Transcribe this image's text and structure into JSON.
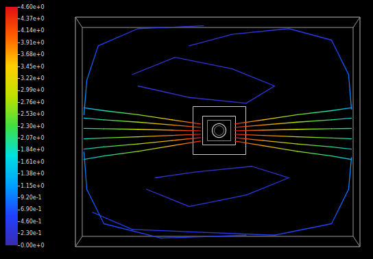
{
  "chart_data": {
    "type": "streamline",
    "xlim": [
      0,
      100
    ],
    "ylim": [
      0,
      80
    ],
    "tick_labels": false,
    "colorbar": {
      "range": [
        0,
        4.6
      ],
      "ticks": [
        {
          "value": 0,
          "label": "0.00e+0"
        },
        {
          "value": 0.23,
          "label": "2.30e-1"
        },
        {
          "value": 0.46,
          "label": "4.60e-1"
        },
        {
          "value": 0.69,
          "label": "6.90e-1"
        },
        {
          "value": 0.92,
          "label": "9.20e-1"
        },
        {
          "value": 1.15,
          "label": "1.15e+0"
        },
        {
          "value": 1.38,
          "label": "1.38e+0"
        },
        {
          "value": 1.61,
          "label": "1.61e+0"
        },
        {
          "value": 1.84,
          "label": "1.84e+0"
        },
        {
          "value": 2.07,
          "label": "2.07e+0"
        },
        {
          "value": 2.3,
          "label": "2.30e+0"
        },
        {
          "value": 2.53,
          "label": "2.53e+0"
        },
        {
          "value": 2.76,
          "label": "2.76e+0"
        },
        {
          "value": 2.99,
          "label": "2.99e+0"
        },
        {
          "value": 3.22,
          "label": "3.22e+0"
        },
        {
          "value": 3.45,
          "label": "3.45e+0"
        },
        {
          "value": 3.68,
          "label": "3.68e+0"
        },
        {
          "value": 3.91,
          "label": "3.91e+0"
        },
        {
          "value": 4.14,
          "label": "4.14e+0"
        },
        {
          "value": 4.37,
          "label": "4.37e+0"
        },
        {
          "value": 4.6,
          "label": "4.60e+0"
        }
      ]
    },
    "streamlines": [
      {
        "points": [
          [
            56,
            36.8,
            4.5
          ],
          [
            66,
            35.2,
            3.6
          ],
          [
            78,
            33.2,
            2.7
          ],
          [
            90,
            31.6,
            2.0
          ],
          [
            97,
            30.4,
            1.4
          ]
        ]
      },
      {
        "points": [
          [
            56,
            38,
            4.5
          ],
          [
            66,
            37,
            3.7
          ],
          [
            78,
            35.8,
            2.8
          ],
          [
            90,
            34.8,
            2.1
          ],
          [
            97,
            34,
            1.5
          ]
        ]
      },
      {
        "points": [
          [
            56,
            39.2,
            4.6
          ],
          [
            66,
            38.8,
            3.9
          ],
          [
            78,
            38.3,
            3.0
          ],
          [
            90,
            37.9,
            2.3
          ],
          [
            97,
            37.6,
            1.7
          ]
        ]
      },
      {
        "points": [
          [
            56,
            40.4,
            4.6
          ],
          [
            66,
            40.6,
            3.9
          ],
          [
            78,
            40.9,
            3.0
          ],
          [
            90,
            41.1,
            2.3
          ],
          [
            97,
            41.2,
            1.7
          ]
        ]
      },
      {
        "points": [
          [
            56,
            41.6,
            4.5
          ],
          [
            66,
            42.4,
            3.7
          ],
          [
            78,
            43.4,
            2.8
          ],
          [
            90,
            44.2,
            2.1
          ],
          [
            97,
            44.8,
            1.5
          ]
        ]
      },
      {
        "points": [
          [
            56,
            42.8,
            4.4
          ],
          [
            66,
            44.2,
            3.5
          ],
          [
            78,
            46,
            2.6
          ],
          [
            90,
            47.4,
            1.9
          ],
          [
            97,
            48.4,
            1.3
          ]
        ]
      },
      {
        "points": [
          [
            44,
            36.8,
            4.4
          ],
          [
            34,
            35.2,
            3.5
          ],
          [
            22,
            33.2,
            2.6
          ],
          [
            10,
            31.6,
            1.9
          ],
          [
            3,
            30.4,
            1.3
          ]
        ]
      },
      {
        "points": [
          [
            44,
            38,
            4.5
          ],
          [
            34,
            37,
            3.7
          ],
          [
            22,
            35.8,
            2.8
          ],
          [
            10,
            34.8,
            2.1
          ],
          [
            3,
            34,
            1.5
          ]
        ]
      },
      {
        "points": [
          [
            44,
            39.2,
            4.6
          ],
          [
            34,
            38.8,
            3.9
          ],
          [
            22,
            38.3,
            3.0
          ],
          [
            10,
            37.9,
            2.3
          ],
          [
            3,
            37.6,
            1.7
          ]
        ]
      },
      {
        "points": [
          [
            44,
            40.4,
            4.6
          ],
          [
            34,
            40.6,
            3.9
          ],
          [
            22,
            40.9,
            3.0
          ],
          [
            10,
            41.1,
            2.3
          ],
          [
            3,
            41.2,
            1.7
          ]
        ]
      },
      {
        "points": [
          [
            44,
            41.6,
            4.5
          ],
          [
            34,
            42.4,
            3.7
          ],
          [
            22,
            43.4,
            2.8
          ],
          [
            10,
            44.2,
            2.1
          ],
          [
            3,
            44.8,
            1.5
          ]
        ]
      },
      {
        "points": [
          [
            44,
            42.8,
            4.4
          ],
          [
            34,
            44.2,
            3.5
          ],
          [
            22,
            46,
            2.6
          ],
          [
            10,
            47.4,
            1.9
          ],
          [
            3,
            48.4,
            1.3
          ]
        ]
      },
      {
        "points": [
          [
            97,
            48,
            1.2
          ],
          [
            96,
            60,
            0.8
          ],
          [
            90,
            72,
            0.5
          ],
          [
            75,
            76,
            0.4
          ],
          [
            55,
            74,
            0.3
          ],
          [
            40,
            70,
            0.3
          ]
        ]
      },
      {
        "points": [
          [
            97,
            31,
            1.2
          ],
          [
            96,
            20,
            0.9
          ],
          [
            90,
            8,
            0.6
          ],
          [
            70,
            4,
            0.5
          ],
          [
            45,
            5,
            0.4
          ],
          [
            20,
            6,
            0.5
          ],
          [
            6,
            12,
            0.6
          ]
        ]
      },
      {
        "points": [
          [
            3,
            46,
            1.2
          ],
          [
            4,
            58,
            0.9
          ],
          [
            8,
            70,
            0.6
          ],
          [
            22,
            76,
            0.4
          ],
          [
            45,
            77,
            0.3
          ]
        ]
      },
      {
        "points": [
          [
            3,
            33,
            1.1
          ],
          [
            4,
            20,
            0.8
          ],
          [
            10,
            8,
            0.6
          ],
          [
            30,
            3,
            0.5
          ],
          [
            60,
            4,
            0.4
          ]
        ]
      },
      {
        "points": [
          [
            20,
            60,
            0.3
          ],
          [
            35,
            66,
            0.2
          ],
          [
            55,
            62,
            0.3
          ],
          [
            70,
            56,
            0.4
          ],
          [
            60,
            50,
            0.3
          ],
          [
            40,
            52,
            0.2
          ],
          [
            22,
            56,
            0.3
          ]
        ]
      },
      {
        "points": [
          [
            25,
            20,
            0.3
          ],
          [
            40,
            14,
            0.3
          ],
          [
            60,
            18,
            0.4
          ],
          [
            75,
            24,
            0.3
          ],
          [
            62,
            28,
            0.2
          ],
          [
            42,
            26,
            0.2
          ],
          [
            28,
            24,
            0.3
          ]
        ]
      }
    ]
  }
}
